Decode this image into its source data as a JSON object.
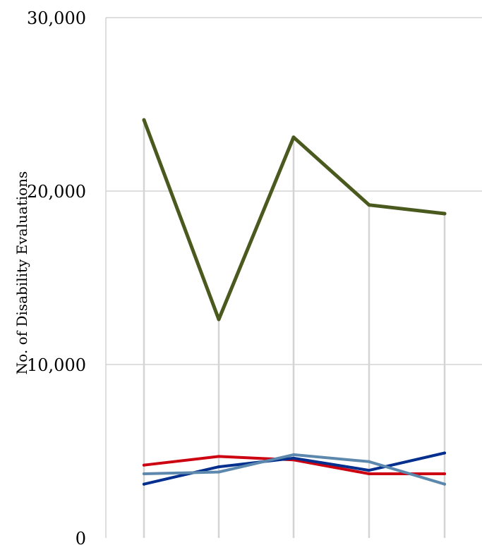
{
  "chart_data": {
    "type": "line",
    "ylabel": "No. of Disability Evaluations",
    "xlabel": "",
    "ylim": [
      0,
      30000
    ],
    "yticks": [
      {
        "value": 0,
        "label": "0"
      },
      {
        "value": 10000,
        "label": "10,000"
      },
      {
        "value": 20000,
        "label": "20,000"
      },
      {
        "value": 30000,
        "label": "30,000"
      }
    ],
    "x": [
      1,
      2,
      3,
      4,
      5
    ],
    "grid": {
      "horizontal": true,
      "vertical": true
    },
    "legend": "none",
    "series": [
      {
        "color": "#4a5a1e",
        "width": 5,
        "values": [
          24100,
          12600,
          23100,
          19200,
          18700
        ]
      },
      {
        "color": "#cc0010",
        "width": 4,
        "values": [
          4200,
          4700,
          4500,
          3700,
          3700
        ]
      },
      {
        "color": "#002f8e",
        "width": 4,
        "values": [
          3100,
          4100,
          4600,
          3900,
          4900
        ]
      },
      {
        "color": "#5d88ad",
        "width": 4,
        "values": [
          3700,
          3800,
          4800,
          4400,
          3100
        ]
      }
    ]
  }
}
